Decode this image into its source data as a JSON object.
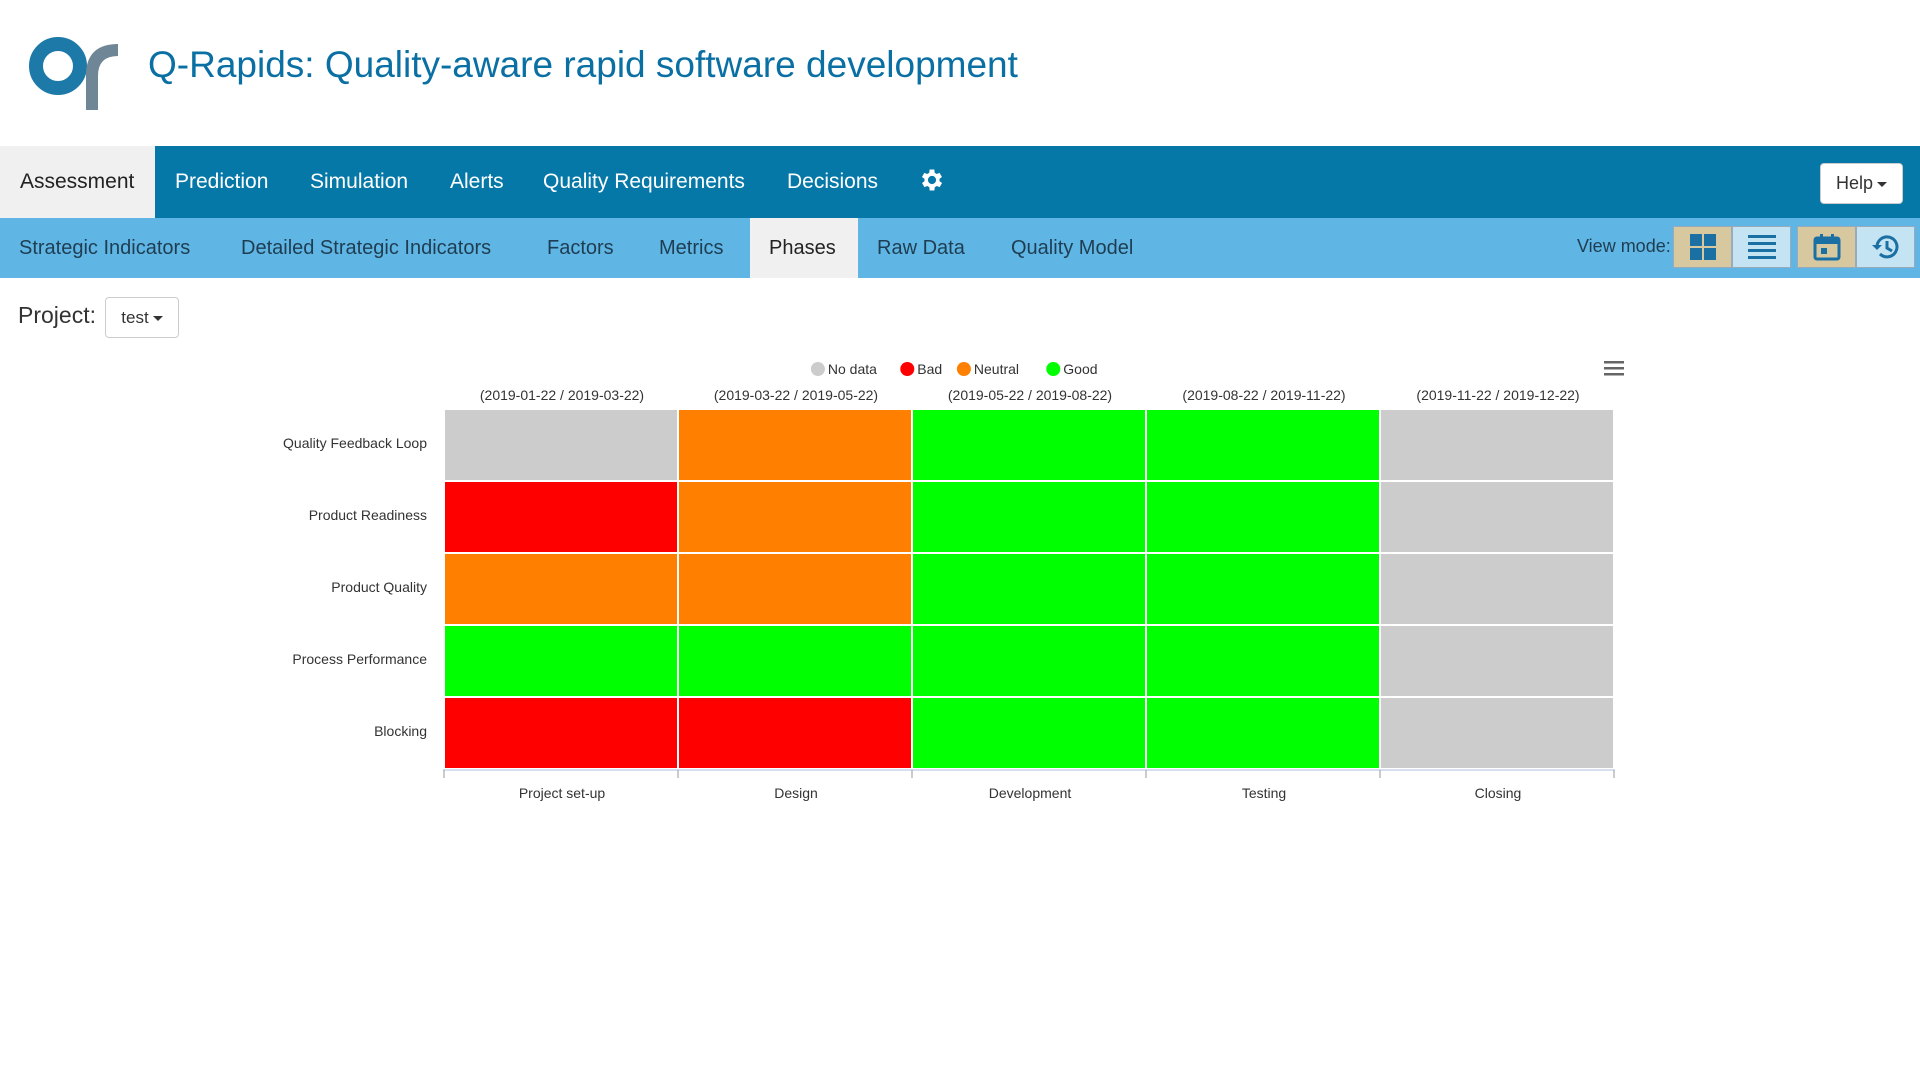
{
  "app": {
    "title": "Q-Rapids: Quality-aware rapid software development"
  },
  "nav": {
    "items": [
      {
        "label": "Assessment",
        "active": true
      },
      {
        "label": "Prediction"
      },
      {
        "label": "Simulation"
      },
      {
        "label": "Alerts"
      },
      {
        "label": "Quality Requirements"
      },
      {
        "label": "Decisions"
      }
    ],
    "settings_icon": "gear-icon",
    "help_label": "Help"
  },
  "subnav": {
    "items": [
      {
        "label": "Strategic Indicators"
      },
      {
        "label": "Detailed Strategic Indicators"
      },
      {
        "label": "Factors"
      },
      {
        "label": "Metrics"
      },
      {
        "label": "Phases",
        "active": true
      },
      {
        "label": "Raw Data"
      },
      {
        "label": "Quality Model"
      }
    ],
    "view_mode_label": "View mode:",
    "view_mode_icons": [
      "grid-icon",
      "list-icon",
      "calendar-icon",
      "history-icon"
    ]
  },
  "project": {
    "label": "Project:",
    "selected": "test"
  },
  "colors": {
    "no_data": "#cccccc",
    "bad": "#ff0000",
    "neutral": "#ff8000",
    "good": "#00ff00",
    "nav": "#0678a8",
    "subnav": "#5fb6e4"
  },
  "chart_data": {
    "type": "heatmap",
    "legend": [
      {
        "name": "No data",
        "color": "#cccccc"
      },
      {
        "name": "Bad",
        "color": "#ff0000"
      },
      {
        "name": "Neutral",
        "color": "#ff8000"
      },
      {
        "name": "Good",
        "color": "#00ff00"
      }
    ],
    "legend_position": "top",
    "phases": [
      "Project set-up",
      "Design",
      "Development",
      "Testing",
      "Closing"
    ],
    "periods": [
      "(2019-01-22 / 2019-03-22)",
      "(2019-03-22 / 2019-05-22)",
      "(2019-05-22 / 2019-08-22)",
      "(2019-08-22 / 2019-11-22)",
      "(2019-11-22 / 2019-12-22)"
    ],
    "indicators": [
      "Quality Feedback Loop",
      "Product Readiness",
      "Product Quality",
      "Process Performance",
      "Blocking"
    ],
    "values": [
      [
        "No data",
        "Neutral",
        "Good",
        "Good",
        "No data"
      ],
      [
        "Bad",
        "Neutral",
        "Good",
        "Good",
        "No data"
      ],
      [
        "Neutral",
        "Neutral",
        "Good",
        "Good",
        "No data"
      ],
      [
        "Good",
        "Good",
        "Good",
        "Good",
        "No data"
      ],
      [
        "Bad",
        "Bad",
        "Good",
        "Good",
        "No data"
      ]
    ],
    "menu_icon": "hamburger-icon"
  }
}
